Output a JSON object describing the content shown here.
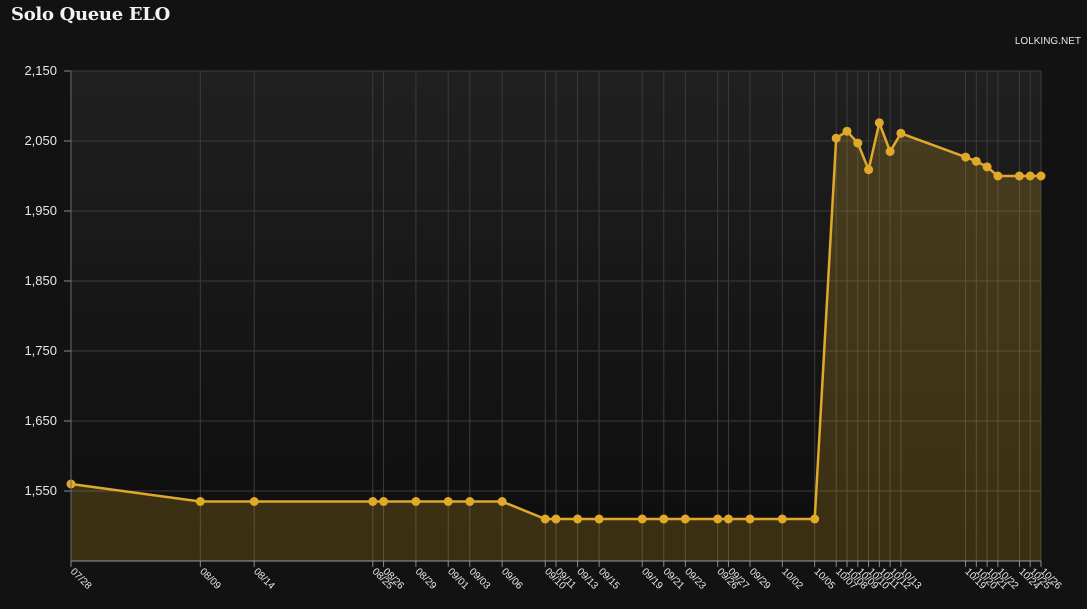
{
  "header": {
    "title": "Solo Queue ELO",
    "credit": "LOLKING.NET"
  },
  "colors": {
    "line": "#e0a92a",
    "fill": "#e0a92a",
    "grid": "#3c3c3c",
    "text": "#e8e8e8"
  },
  "chart_data": {
    "type": "area",
    "title": "Solo Queue ELO",
    "xlabel": "",
    "ylabel": "",
    "ylim": [
      1450,
      2150
    ],
    "yticks": [
      1550,
      1650,
      1750,
      1850,
      1950,
      2050,
      2150
    ],
    "grid": true,
    "x": [
      "2013-07-28",
      "2013-08-09",
      "2013-08-14",
      "2013-08-25",
      "2013-08-26",
      "2013-08-29",
      "2013-09-01",
      "2013-09-03",
      "2013-09-06",
      "2013-09-10",
      "2013-09-11",
      "2013-09-13",
      "2013-09-15",
      "2013-09-19",
      "2013-09-21",
      "2013-09-23",
      "2013-09-26",
      "2013-09-27",
      "2013-09-29",
      "2013-10-02",
      "2013-10-05",
      "2013-10-07",
      "2013-10-08",
      "2013-10-09",
      "2013-10-10",
      "2013-10-11",
      "2013-10-12",
      "2013-10-13",
      "2013-10-19",
      "2013-10-20",
      "2013-10-21",
      "2013-10-22",
      "2013-10-24",
      "2013-10-25",
      "2013-10-26"
    ],
    "x_labels": [
      "07/28",
      "08/09",
      "08/14",
      "08/25",
      "08/26",
      "08/29",
      "09/01",
      "09/03",
      "09/06",
      "09/10",
      "09/11",
      "09/13",
      "09/15",
      "09/19",
      "09/21",
      "09/23",
      "09/26",
      "09/27",
      "09/29",
      "10/02",
      "10/05",
      "10/07",
      "10/08",
      "10/09",
      "10/10",
      "10/11",
      "10/12",
      "10/13",
      "10/19",
      "10/20",
      "10/21",
      "10/22",
      "10/24",
      "10/25",
      "10/26"
    ],
    "series": [
      {
        "values": [
          1560,
          1535,
          1535,
          1535,
          1535,
          1535,
          1535,
          1535,
          1535,
          1510,
          1510,
          1510,
          1510,
          1510,
          1510,
          1510,
          1510,
          1510,
          1510,
          1510,
          1510,
          2054,
          2064,
          2047,
          2009,
          2076,
          2035,
          2061,
          2027,
          2021,
          2013,
          2000,
          2000,
          2000,
          2000
        ]
      }
    ]
  }
}
